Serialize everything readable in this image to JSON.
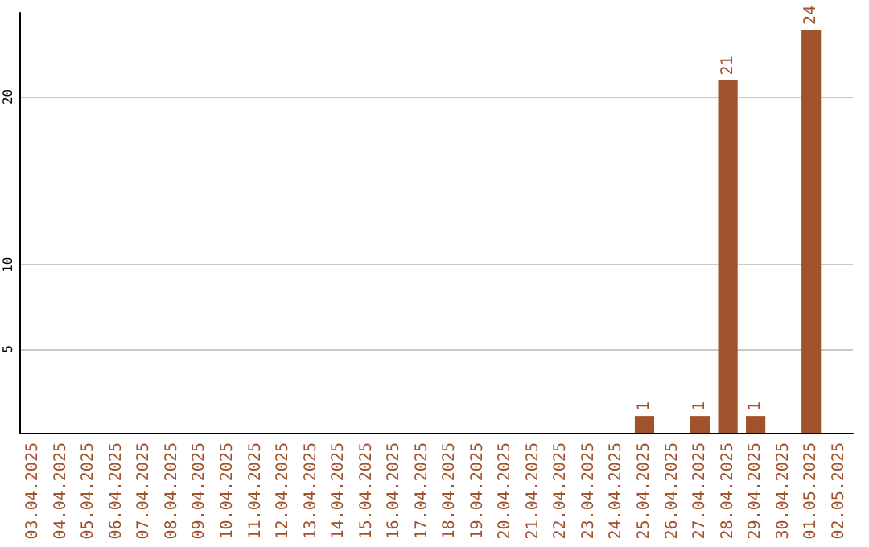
{
  "chart_data": {
    "type": "bar",
    "categories": [
      "03.04.2025",
      "04.04.2025",
      "05.04.2025",
      "06.04.2025",
      "07.04.2025",
      "08.04.2025",
      "09.04.2025",
      "10.04.2025",
      "11.04.2025",
      "12.04.2025",
      "13.04.2025",
      "14.04.2025",
      "15.04.2025",
      "16.04.2025",
      "17.04.2025",
      "18.04.2025",
      "19.04.2025",
      "20.04.2025",
      "21.04.2025",
      "22.04.2025",
      "23.04.2025",
      "24.04.2025",
      "25.04.2025",
      "26.04.2025",
      "27.04.2025",
      "28.04.2025",
      "29.04.2025",
      "30.04.2025",
      "01.05.2025",
      "02.05.2025"
    ],
    "values": [
      null,
      null,
      null,
      null,
      null,
      null,
      null,
      null,
      null,
      null,
      null,
      null,
      null,
      null,
      null,
      null,
      null,
      null,
      null,
      null,
      null,
      null,
      1,
      null,
      1,
      21,
      1,
      null,
      24,
      null
    ],
    "color": "#a0522d",
    "ylim": [
      0,
      25
    ],
    "yticks": [
      5,
      10,
      20
    ],
    "grid": "y",
    "data_labels": true
  }
}
